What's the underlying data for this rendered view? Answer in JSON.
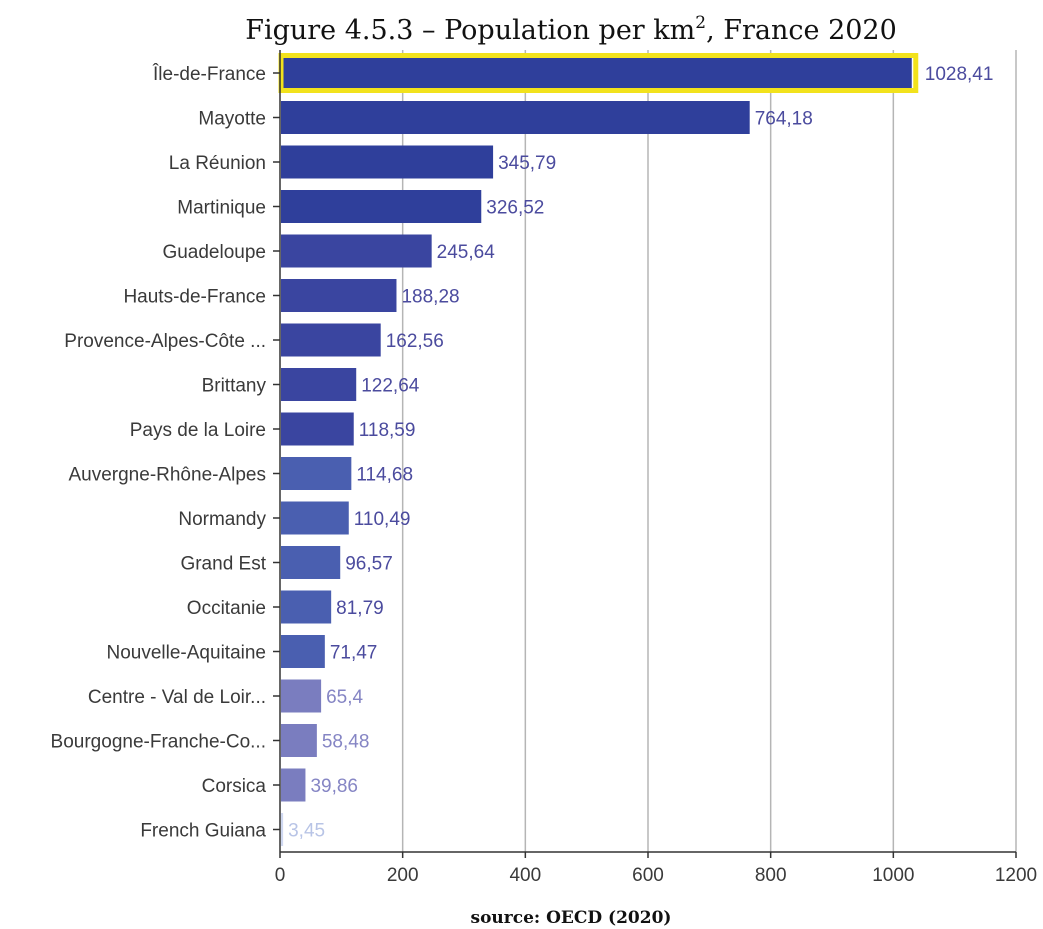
{
  "chart_data": {
    "type": "bar",
    "orientation": "horizontal",
    "title": "Figure 4.5.3 – Population per km",
    "title_superscript": "2",
    "title_suffix": ", France 2020",
    "source": "source: OECD (2020)",
    "categories": [
      "Île-de-France",
      "Mayotte",
      "La Réunion",
      "Martinique",
      "Guadeloupe",
      "Hauts-de-France",
      "Provence-Alpes-Côte ...",
      "Brittany",
      "Pays de la Loire",
      "Auvergne-Rhône-Alpes",
      "Normandy",
      "Grand Est",
      "Occitanie",
      "Nouvelle-Aquitaine",
      "Centre - Val de Loir...",
      "Bourgogne-Franche-Co...",
      "Corsica",
      "French Guiana"
    ],
    "values": [
      1028.41,
      764.18,
      345.79,
      326.52,
      245.64,
      188.28,
      162.56,
      122.64,
      118.59,
      114.68,
      110.49,
      96.57,
      81.79,
      71.47,
      65.4,
      58.48,
      39.86,
      3.45
    ],
    "value_labels": [
      "1028,41",
      "764,18",
      "345,79",
      "326,52",
      "245,64",
      "188,28",
      "162,56",
      "122,64",
      "118,59",
      "114,68",
      "110,49",
      "96,57",
      "81,79",
      "71,47",
      "65,4",
      "58,48",
      "39,86",
      "3,45"
    ],
    "bar_colors": [
      "#2f3f9b",
      "#2f3f9b",
      "#2f3f9b",
      "#2f3f9b",
      "#3a45a0",
      "#3a45a0",
      "#3a45a0",
      "#3a45a0",
      "#3a45a0",
      "#4a5fb0",
      "#4a5fb0",
      "#4a5fb0",
      "#4a5fb0",
      "#4a5fb0",
      "#7a7dbf",
      "#7a7dbf",
      "#7a7dbf",
      "#cfd8f0"
    ],
    "label_colors": [
      "#4b4b9e",
      "#4b4b9e",
      "#4b4b9e",
      "#4b4b9e",
      "#4b4b9e",
      "#4b4b9e",
      "#4b4b9e",
      "#4b4b9e",
      "#4b4b9e",
      "#4b4b9e",
      "#4b4b9e",
      "#4b4b9e",
      "#4b4b9e",
      "#4b4b9e",
      "#8585c4",
      "#8585c4",
      "#8585c4",
      "#b8c4e6"
    ],
    "highlighted_category": "Île-de-France",
    "highlight_color": "#f2e21c",
    "xlim": [
      0,
      1200
    ],
    "xticks": [
      0,
      200,
      400,
      600,
      800,
      1000,
      1200
    ],
    "tick_labels": [
      "0",
      "200",
      "400",
      "600",
      "800",
      "1000",
      "1200"
    ],
    "grid": true,
    "gridline_color": "#b5b5b5",
    "xlabel": "",
    "ylabel": ""
  }
}
